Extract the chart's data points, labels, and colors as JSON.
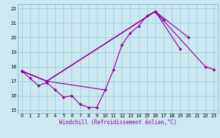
{
  "xlabel": "Windchill (Refroidissement éolien,°C)",
  "bg_color": "#cce8f0",
  "grid_color": "#99cce0",
  "line_color": "#990099",
  "xlim": [
    -0.5,
    23.5
  ],
  "ylim": [
    14.8,
    22.3
  ],
  "xticks": [
    0,
    1,
    2,
    3,
    4,
    5,
    6,
    7,
    8,
    9,
    10,
    11,
    12,
    13,
    14,
    15,
    16,
    17,
    18,
    19,
    20,
    21,
    22,
    23
  ],
  "yticks": [
    15,
    16,
    17,
    18,
    19,
    20,
    21,
    22
  ],
  "series": [
    {
      "x": [
        0,
        1,
        2,
        3,
        4,
        5,
        6,
        7,
        8,
        9,
        10
      ],
      "y": [
        17.7,
        17.2,
        16.7,
        16.9,
        16.4,
        15.9,
        16.0,
        15.4,
        15.2,
        15.2,
        16.4
      ]
    },
    {
      "x": [
        0,
        3,
        10,
        11,
        12,
        13,
        14,
        15,
        16,
        17
      ],
      "y": [
        17.7,
        17.0,
        16.4,
        17.8,
        19.5,
        20.3,
        20.8,
        21.5,
        21.8,
        21.2
      ]
    },
    {
      "x": [
        0,
        3,
        16,
        19
      ],
      "y": [
        17.7,
        17.0,
        21.8,
        19.2
      ]
    },
    {
      "x": [
        0,
        3,
        16,
        20
      ],
      "y": [
        17.7,
        17.0,
        21.8,
        20.0
      ]
    },
    {
      "x": [
        0,
        3,
        16,
        22,
        23
      ],
      "y": [
        17.7,
        17.0,
        21.8,
        18.0,
        17.8
      ]
    }
  ]
}
